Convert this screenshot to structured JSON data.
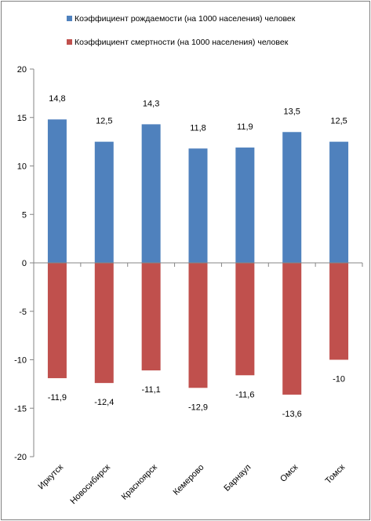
{
  "chart_data": {
    "type": "bar",
    "title": "",
    "xlabel": "",
    "ylabel": "",
    "ylim": [
      -20,
      20
    ],
    "yticks": [
      20,
      15,
      10,
      5,
      0,
      -5,
      -10,
      -15,
      -20
    ],
    "grid": false,
    "legend_position": "top",
    "categories": [
      "Иркутск",
      "Новосибирск",
      "Красноярск",
      "Кемерово",
      "Барнаул",
      "Омск",
      "Томск"
    ],
    "series": [
      {
        "name": "Коэффициент рождаемости (на 1000 населения) человек",
        "color": "#4f81bd",
        "values": [
          14.8,
          12.5,
          14.3,
          11.8,
          11.9,
          13.5,
          12.5
        ],
        "labels": [
          "14,8",
          "12,5",
          "14,3",
          "11,8",
          "11,9",
          "13,5",
          "12,5"
        ]
      },
      {
        "name": "Коэффициент смертности (на 1000 населения) человек",
        "color": "#c0504d",
        "values": [
          -11.9,
          -12.4,
          -11.1,
          -12.9,
          -11.6,
          -13.6,
          -10
        ],
        "labels": [
          "-11,9",
          "-12,4",
          "-11,1",
          "-12,9",
          "-11,6",
          "-13,6",
          "-10"
        ]
      }
    ]
  }
}
